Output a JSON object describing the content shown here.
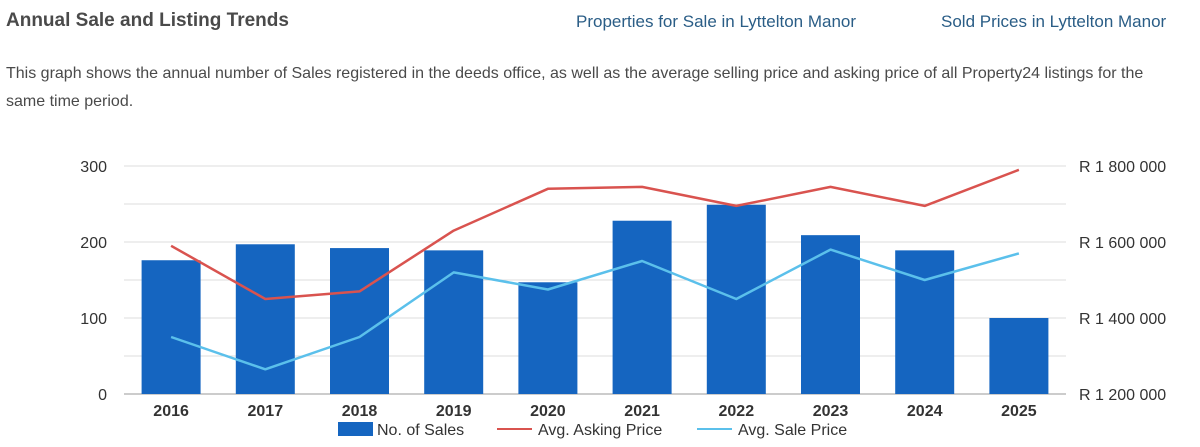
{
  "header": {
    "title": "Annual Sale and Listing Trends",
    "links": [
      {
        "label": "Properties for Sale in Lyttelton Manor"
      },
      {
        "label": "Sold Prices in Lyttelton Manor"
      }
    ]
  },
  "description": "This graph shows the annual number of Sales registered in the deeds office, as well as the average selling price and asking price of all Property24 listings for the same time period.",
  "colors": {
    "bars": "#1565c0",
    "asking": "#d9534f",
    "sale": "#5bc0eb",
    "grid": "#dddddd",
    "axis_text": "#333333"
  },
  "chart_data": {
    "type": "bar",
    "title": "",
    "categories": [
      "2016",
      "2017",
      "2018",
      "2019",
      "2020",
      "2021",
      "2022",
      "2023",
      "2024",
      "2025"
    ],
    "left_axis": {
      "min": 0,
      "max": 300,
      "ticks": [
        0,
        100,
        200,
        300
      ],
      "tick_labels": [
        "0",
        "100",
        "200",
        "300"
      ]
    },
    "right_axis": {
      "min": 1200000,
      "max": 1800000,
      "ticks": [
        1200000,
        1400000,
        1600000,
        1800000
      ],
      "tick_labels": [
        "R 1 200 000",
        "R 1 400 000",
        "R 1 600 000",
        "R 1 800 000"
      ]
    },
    "series": [
      {
        "name": "No. of Sales",
        "type": "bar",
        "axis": "left",
        "values": [
          176,
          197,
          192,
          189,
          147,
          228,
          249,
          209,
          189,
          100
        ]
      },
      {
        "name": "Avg. Asking Price",
        "type": "line",
        "axis": "right",
        "values": [
          1590000,
          1450000,
          1470000,
          1630000,
          1740000,
          1745000,
          1695000,
          1745000,
          1695000,
          1790000
        ]
      },
      {
        "name": "Avg. Sale Price",
        "type": "line",
        "axis": "right",
        "values": [
          1350000,
          1265000,
          1350000,
          1520000,
          1475000,
          1550000,
          1450000,
          1580000,
          1500000,
          1570000
        ]
      }
    ],
    "grid": true,
    "legend_position": "bottom"
  }
}
